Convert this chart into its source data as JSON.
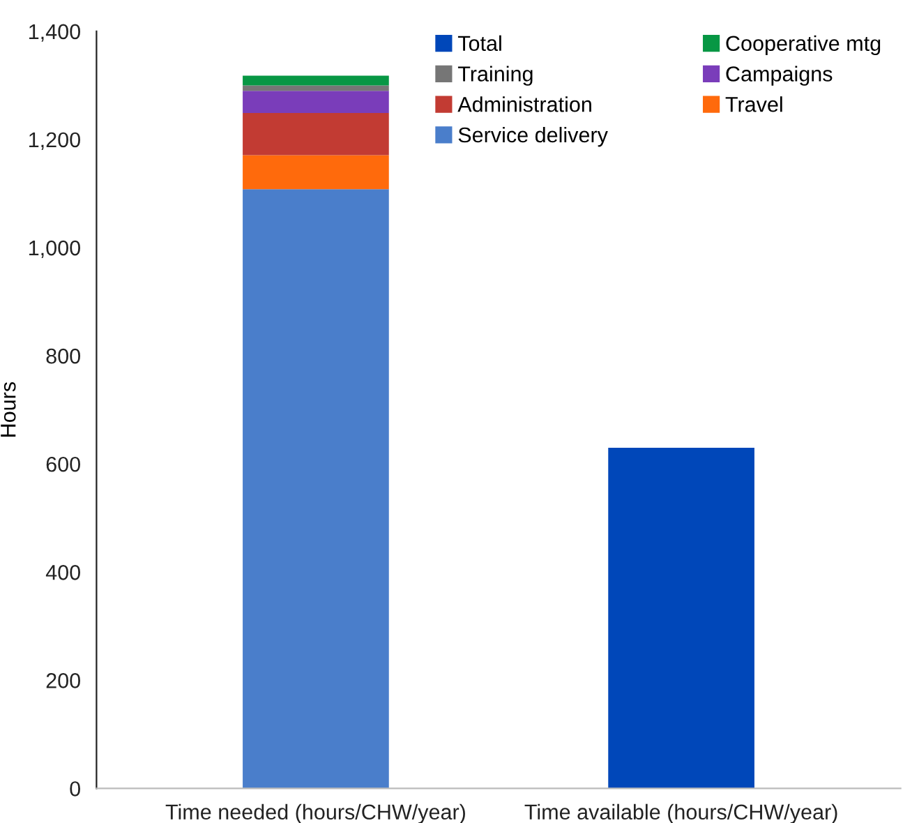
{
  "chart_data": {
    "type": "bar",
    "stacked": true,
    "ylabel": "Hours",
    "categories": [
      "Time needed (hours/CHW/year)",
      "Time available (hours/CHW/year)"
    ],
    "series": [
      {
        "name": "Service delivery",
        "color": "#4a7ecb",
        "values": [
          1108,
          null
        ]
      },
      {
        "name": "Travel",
        "color": "#ff6a0c",
        "values": [
          63,
          null
        ]
      },
      {
        "name": "Administration",
        "color": "#c23b33",
        "values": [
          78,
          null
        ]
      },
      {
        "name": "Campaigns",
        "color": "#7a3dba",
        "values": [
          41,
          null
        ]
      },
      {
        "name": "Training",
        "color": "#767676",
        "values": [
          10,
          null
        ]
      },
      {
        "name": "Cooperative mtg",
        "color": "#079744",
        "values": [
          18,
          null
        ]
      },
      {
        "name": "Total",
        "color": "#0047b9",
        "values": [
          null,
          630
        ]
      }
    ],
    "ylim": [
      0,
      1400
    ],
    "yticks": [
      {
        "value": 0,
        "label": "0"
      },
      {
        "value": 200,
        "label": "200"
      },
      {
        "value": 400,
        "label": "400"
      },
      {
        "value": 600,
        "label": "600"
      },
      {
        "value": 800,
        "label": "800"
      },
      {
        "value": 1000,
        "label": "1,000"
      },
      {
        "value": 1200,
        "label": "1,200"
      },
      {
        "value": 1400,
        "label": "1,400"
      }
    ],
    "grid": false,
    "legend": "top right"
  }
}
